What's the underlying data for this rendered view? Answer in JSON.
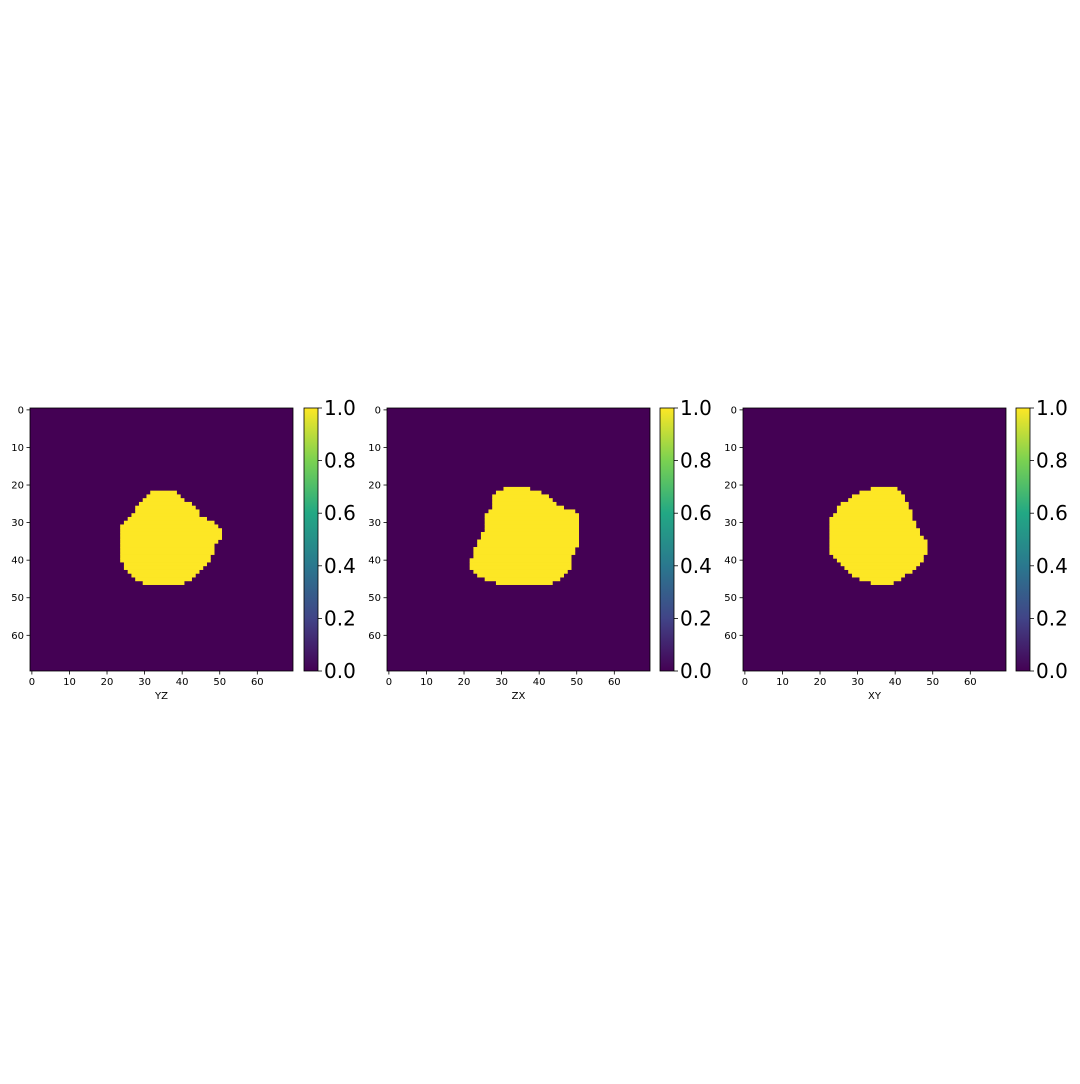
{
  "chart_data": [
    {
      "type": "heatmap",
      "xlabel": "YZ",
      "xlim": [
        0,
        70
      ],
      "ylim": [
        70,
        0
      ],
      "x_ticks": [
        "0",
        "10",
        "20",
        "30",
        "40",
        "50",
        "60"
      ],
      "y_ticks": [
        "0",
        "10",
        "20",
        "30",
        "40",
        "50",
        "60"
      ],
      "value_range": [
        0.0,
        1.0
      ],
      "colormap": "viridis",
      "colorbar_ticks": [
        "0.0",
        "0.2",
        "0.4",
        "0.6",
        "0.8",
        "1.0"
      ],
      "background_value": 0.0,
      "mask_value": 1.0,
      "mask_rows": [
        [
          22,
          32,
          38
        ],
        [
          23,
          31,
          39
        ],
        [
          24,
          30,
          40
        ],
        [
          25,
          29,
          42
        ],
        [
          26,
          28,
          43
        ],
        [
          27,
          28,
          44
        ],
        [
          28,
          27,
          44
        ],
        [
          29,
          26,
          46
        ],
        [
          30,
          25,
          48
        ],
        [
          31,
          24,
          49
        ],
        [
          32,
          24,
          50
        ],
        [
          33,
          24,
          50
        ],
        [
          34,
          24,
          50
        ],
        [
          35,
          24,
          49
        ],
        [
          36,
          24,
          48
        ],
        [
          37,
          24,
          48
        ],
        [
          38,
          24,
          48
        ],
        [
          39,
          24,
          47
        ],
        [
          40,
          24,
          47
        ],
        [
          41,
          25,
          46
        ],
        [
          42,
          25,
          45
        ],
        [
          43,
          26,
          44
        ],
        [
          44,
          27,
          43
        ],
        [
          45,
          28,
          42
        ],
        [
          46,
          30,
          40
        ]
      ]
    },
    {
      "type": "heatmap",
      "xlabel": "ZX",
      "xlim": [
        0,
        70
      ],
      "ylim": [
        70,
        0
      ],
      "x_ticks": [
        "0",
        "10",
        "20",
        "30",
        "40",
        "50",
        "60"
      ],
      "y_ticks": [
        "0",
        "10",
        "20",
        "30",
        "40",
        "50",
        "60"
      ],
      "value_range": [
        0.0,
        1.0
      ],
      "colormap": "viridis",
      "colorbar_ticks": [
        "0.0",
        "0.2",
        "0.4",
        "0.6",
        "0.8",
        "1.0"
      ],
      "background_value": 0.0,
      "mask_value": 1.0,
      "mask_rows": [
        [
          21,
          31,
          37
        ],
        [
          22,
          29,
          40
        ],
        [
          23,
          28,
          42
        ],
        [
          24,
          28,
          43
        ],
        [
          25,
          28,
          44
        ],
        [
          26,
          28,
          46
        ],
        [
          27,
          27,
          49
        ],
        [
          28,
          26,
          50
        ],
        [
          29,
          26,
          50
        ],
        [
          30,
          26,
          50
        ],
        [
          31,
          26,
          50
        ],
        [
          32,
          26,
          50
        ],
        [
          33,
          25,
          50
        ],
        [
          34,
          25,
          50
        ],
        [
          35,
          24,
          50
        ],
        [
          36,
          24,
          50
        ],
        [
          37,
          23,
          49
        ],
        [
          38,
          23,
          49
        ],
        [
          39,
          23,
          48
        ],
        [
          40,
          22,
          48
        ],
        [
          41,
          22,
          48
        ],
        [
          42,
          22,
          48
        ],
        [
          43,
          23,
          47
        ],
        [
          44,
          24,
          46
        ],
        [
          45,
          26,
          45
        ],
        [
          46,
          29,
          43
        ]
      ]
    },
    {
      "type": "heatmap",
      "xlabel": "XY",
      "xlim": [
        0,
        70
      ],
      "ylim": [
        70,
        0
      ],
      "x_ticks": [
        "0",
        "10",
        "20",
        "30",
        "40",
        "50",
        "60"
      ],
      "y_ticks": [
        "0",
        "10",
        "20",
        "30",
        "40",
        "50",
        "60"
      ],
      "value_range": [
        0.0,
        1.0
      ],
      "colormap": "viridis",
      "colorbar_ticks": [
        "0.0",
        "0.2",
        "0.4",
        "0.6",
        "0.8",
        "1.0"
      ],
      "background_value": 0.0,
      "mask_value": 1.0,
      "mask_rows": [
        [
          21,
          34,
          40
        ],
        [
          22,
          31,
          41
        ],
        [
          23,
          29,
          42
        ],
        [
          24,
          28,
          42
        ],
        [
          25,
          26,
          43
        ],
        [
          26,
          25,
          43
        ],
        [
          27,
          25,
          44
        ],
        [
          28,
          24,
          44
        ],
        [
          29,
          23,
          44
        ],
        [
          30,
          23,
          45
        ],
        [
          31,
          23,
          45
        ],
        [
          32,
          23,
          46
        ],
        [
          33,
          23,
          46
        ],
        [
          34,
          23,
          47
        ],
        [
          35,
          23,
          48
        ],
        [
          36,
          23,
          48
        ],
        [
          37,
          23,
          48
        ],
        [
          38,
          23,
          48
        ],
        [
          39,
          24,
          47
        ],
        [
          40,
          25,
          47
        ],
        [
          41,
          26,
          46
        ],
        [
          42,
          27,
          45
        ],
        [
          43,
          28,
          44
        ],
        [
          44,
          29,
          42
        ],
        [
          45,
          31,
          41
        ],
        [
          46,
          34,
          39
        ]
      ]
    }
  ],
  "colors": {
    "low": "#440154",
    "high": "#fde725",
    "colorbar_stops": [
      "#440154",
      "#414487",
      "#2a788e",
      "#22a884",
      "#7ad151",
      "#fde725"
    ]
  }
}
